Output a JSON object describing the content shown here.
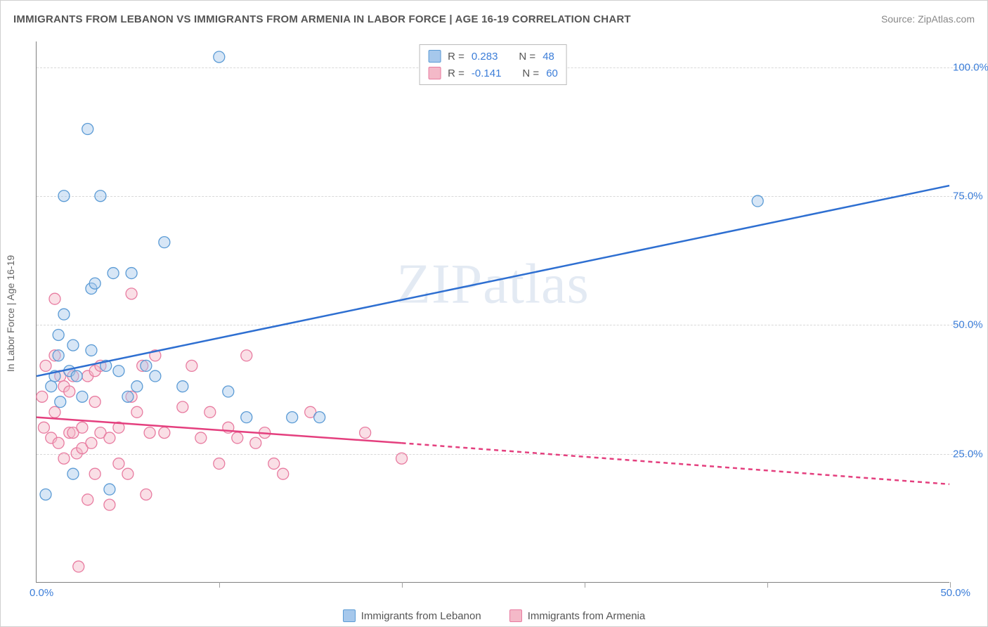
{
  "title": "IMMIGRANTS FROM LEBANON VS IMMIGRANTS FROM ARMENIA IN LABOR FORCE | AGE 16-19 CORRELATION CHART",
  "source": "Source: ZipAtlas.com",
  "watermark": "ZIPatlas",
  "y_axis_label": "In Labor Force | Age 16-19",
  "chart": {
    "type": "scatter",
    "xlim": [
      0,
      50
    ],
    "ylim": [
      0,
      105
    ],
    "y_ticks": [
      25,
      50,
      75,
      100
    ],
    "y_tick_labels": [
      "25.0%",
      "50.0%",
      "75.0%",
      "100.0%"
    ],
    "x_ticks": [
      0,
      10,
      20,
      30,
      40,
      50
    ],
    "origin_label": "0.0%",
    "xmax_label": "50.0%",
    "background_color": "#ffffff",
    "grid_color": "#d8d8d8",
    "axis_color": "#808080",
    "marker_radius": 8,
    "marker_opacity": 0.45,
    "line_width": 2.5
  },
  "series": {
    "lebanon": {
      "label": "Immigrants from Lebanon",
      "color_fill": "#a6c8ec",
      "color_stroke": "#5b9bd5",
      "line_color": "#2e6fd1",
      "R_label": "R =",
      "R_value": "0.283",
      "N_label": "N =",
      "N_value": "48",
      "trend": {
        "x1": 0,
        "y1": 40,
        "x2": 50,
        "y2": 77
      },
      "points": [
        [
          0.5,
          17
        ],
        [
          0.8,
          38
        ],
        [
          1.0,
          40
        ],
        [
          1.2,
          44
        ],
        [
          1.2,
          48
        ],
        [
          1.3,
          35
        ],
        [
          1.5,
          52
        ],
        [
          1.5,
          75
        ],
        [
          1.8,
          41
        ],
        [
          2.0,
          46
        ],
        [
          2.0,
          21
        ],
        [
          2.2,
          40
        ],
        [
          2.5,
          36
        ],
        [
          2.8,
          88
        ],
        [
          3.0,
          45
        ],
        [
          3.0,
          57
        ],
        [
          3.2,
          58
        ],
        [
          3.5,
          75
        ],
        [
          3.8,
          42
        ],
        [
          4.0,
          18
        ],
        [
          4.2,
          60
        ],
        [
          4.5,
          41
        ],
        [
          5.0,
          36
        ],
        [
          5.2,
          60
        ],
        [
          5.5,
          38
        ],
        [
          6.0,
          42
        ],
        [
          6.5,
          40
        ],
        [
          7.0,
          66
        ],
        [
          8.0,
          38
        ],
        [
          10.0,
          102
        ],
        [
          10.5,
          37
        ],
        [
          11.5,
          32
        ],
        [
          14.0,
          32
        ],
        [
          15.5,
          32
        ],
        [
          39.5,
          74
        ]
      ]
    },
    "armenia": {
      "label": "Immigrants from Armenia",
      "color_fill": "#f4b9c8",
      "color_stroke": "#e87ba0",
      "line_color": "#e43f7e",
      "R_label": "R =",
      "R_value": "-0.141",
      "N_label": "N =",
      "N_value": "60",
      "trend_solid": {
        "x1": 0,
        "y1": 32,
        "x2": 20,
        "y2": 27
      },
      "trend_dash": {
        "x1": 20,
        "y1": 27,
        "x2": 50,
        "y2": 19
      },
      "points": [
        [
          0.3,
          36
        ],
        [
          0.4,
          30
        ],
        [
          0.5,
          42
        ],
        [
          0.8,
          28
        ],
        [
          1.0,
          55
        ],
        [
          1.0,
          44
        ],
        [
          1.0,
          33
        ],
        [
          1.2,
          27
        ],
        [
          1.3,
          40
        ],
        [
          1.5,
          38
        ],
        [
          1.5,
          24
        ],
        [
          1.8,
          29
        ],
        [
          1.8,
          37
        ],
        [
          2.0,
          29
        ],
        [
          2.0,
          40
        ],
        [
          2.2,
          25
        ],
        [
          2.3,
          3
        ],
        [
          2.5,
          26
        ],
        [
          2.5,
          30
        ],
        [
          2.8,
          16
        ],
        [
          2.8,
          40
        ],
        [
          3.0,
          27
        ],
        [
          3.2,
          21
        ],
        [
          3.2,
          41
        ],
        [
          3.2,
          35
        ],
        [
          3.5,
          29
        ],
        [
          3.5,
          42
        ],
        [
          4.0,
          15
        ],
        [
          4.0,
          28
        ],
        [
          4.5,
          23
        ],
        [
          4.5,
          30
        ],
        [
          5.0,
          21
        ],
        [
          5.2,
          36
        ],
        [
          5.2,
          56
        ],
        [
          5.5,
          33
        ],
        [
          5.8,
          42
        ],
        [
          6.0,
          17
        ],
        [
          6.2,
          29
        ],
        [
          6.5,
          44
        ],
        [
          7.0,
          29
        ],
        [
          8.0,
          34
        ],
        [
          8.5,
          42
        ],
        [
          9.0,
          28
        ],
        [
          9.5,
          33
        ],
        [
          10.0,
          23
        ],
        [
          10.5,
          30
        ],
        [
          11.0,
          28
        ],
        [
          11.5,
          44
        ],
        [
          12.0,
          27
        ],
        [
          12.5,
          29
        ],
        [
          13.0,
          23
        ],
        [
          13.5,
          21
        ],
        [
          15.0,
          33
        ],
        [
          18.0,
          29
        ],
        [
          20.0,
          24
        ]
      ]
    }
  }
}
